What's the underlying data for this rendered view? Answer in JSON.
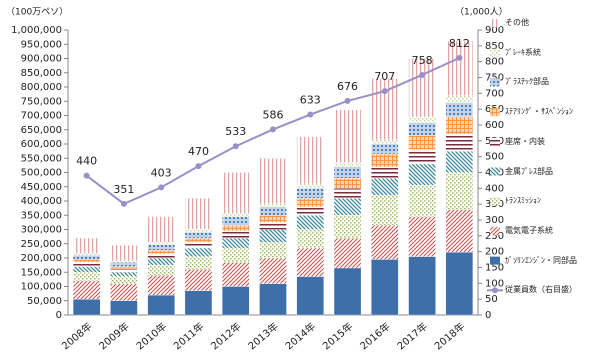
{
  "chart_data": {
    "type": "bar",
    "stacked": true,
    "y_label": "（100万ペソ）",
    "y2_label": "（1,000人）",
    "categories": [
      "2008年",
      "2009年",
      "2010年",
      "2011年",
      "2012年",
      "2013年",
      "2014年",
      "2015年",
      "2016年",
      "2017年",
      "2018年"
    ],
    "ylim": [
      0,
      1000000
    ],
    "yticks": [
      0,
      {
        "value": 50000,
        "label": "50,000"
      },
      {
        "value": 100000,
        "label": "100,000"
      },
      {
        "value": 150000,
        "label": "150,000"
      },
      {
        "value": 200000,
        "label": "200,000"
      },
      {
        "value": 250000,
        "label": "250,000"
      },
      {
        "value": 300000,
        "label": "300,000"
      },
      {
        "value": 350000,
        "label": "350,000"
      },
      {
        "value": 400000,
        "label": "400,000"
      },
      {
        "value": 450000,
        "label": "450,000"
      },
      {
        "value": 500000,
        "label": "500,000"
      },
      {
        "value": 550000,
        "label": "550,000"
      },
      {
        "value": 600000,
        "label": "600,000"
      },
      {
        "value": 650000,
        "label": "650,000"
      },
      {
        "value": 700000,
        "label": "700,000"
      },
      {
        "value": 750000,
        "label": "750,000"
      },
      {
        "value": 800000,
        "label": "800,000"
      },
      {
        "value": 850000,
        "label": "850,000"
      },
      {
        "value": 900000,
        "label": "900,000"
      },
      {
        "value": 950000,
        "label": "950,000"
      },
      {
        "value": 1000000,
        "label": "1,000,000"
      }
    ],
    "y2lim": [
      0,
      900
    ],
    "y2ticks": [
      0,
      50,
      100,
      150,
      200,
      250,
      300,
      350,
      400,
      450,
      500,
      550,
      600,
      650,
      700,
      750,
      800,
      850,
      900
    ],
    "series": [
      {
        "name": "ｶﾞｿﾘﾝｴﾝｼﾞﾝ・同部品",
        "color": "#3e6fa8",
        "values": [
          55000,
          50000,
          70000,
          85000,
          100000,
          110000,
          135000,
          165000,
          195000,
          205000,
          220000
        ]
      },
      {
        "name": "電気電子系統",
        "color": "#c0504d",
        "values": [
          65000,
          60000,
          70000,
          75000,
          85000,
          90000,
          100000,
          105000,
          120000,
          140000,
          150000
        ]
      },
      {
        "name": "ﾄﾗﾝｽﾐｯｼｮﾝ",
        "color": "#9bbb59",
        "values": [
          30000,
          25000,
          35000,
          45000,
          50000,
          55000,
          65000,
          80000,
          105000,
          110000,
          130000
        ]
      },
      {
        "name": "金属ﾌﾟﾚｽ部品",
        "color": "#31849b",
        "values": [
          20000,
          15000,
          25000,
          30000,
          35000,
          45000,
          50000,
          60000,
          60000,
          75000,
          75000
        ]
      },
      {
        "name": "座席・内装",
        "color": "#7b2c3b",
        "values": [
          15000,
          12000,
          15000,
          20000,
          25000,
          25000,
          30000,
          35000,
          40000,
          50000,
          60000
        ]
      },
      {
        "name": "ｽﾃｱﾘﾝｸﾞ・ｻｽﾍﾟﾝｼｮﾝ",
        "color": "#f79646",
        "values": [
          10000,
          8000,
          12000,
          15000,
          20000,
          25000,
          30000,
          35000,
          45000,
          50000,
          60000
        ]
      },
      {
        "name": "ﾌﾟﾗｽﾁｯｸ部品",
        "color": "#4f81bd",
        "values": [
          15000,
          15000,
          20000,
          20000,
          30000,
          30000,
          35000,
          40000,
          35000,
          45000,
          50000
        ]
      },
      {
        "name": "ﾌﾞﾚｰｷ系統",
        "color": "#c3d69b",
        "values": [
          5000,
          5000,
          8000,
          10000,
          10000,
          10000,
          15000,
          15000,
          15000,
          20000,
          25000
        ]
      },
      {
        "name": "その他",
        "color": "#e6a3a3",
        "values": [
          55000,
          55000,
          90000,
          110000,
          145000,
          160000,
          165000,
          185000,
          215000,
          205000,
          190000
        ]
      },
      {
        "name": "従業員数（右目盛）",
        "type": "line",
        "axis": "y2",
        "color": "#9b8fc7",
        "values": [
          440,
          351,
          403,
          470,
          533,
          586,
          633,
          676,
          707,
          758,
          812
        ]
      }
    ]
  }
}
